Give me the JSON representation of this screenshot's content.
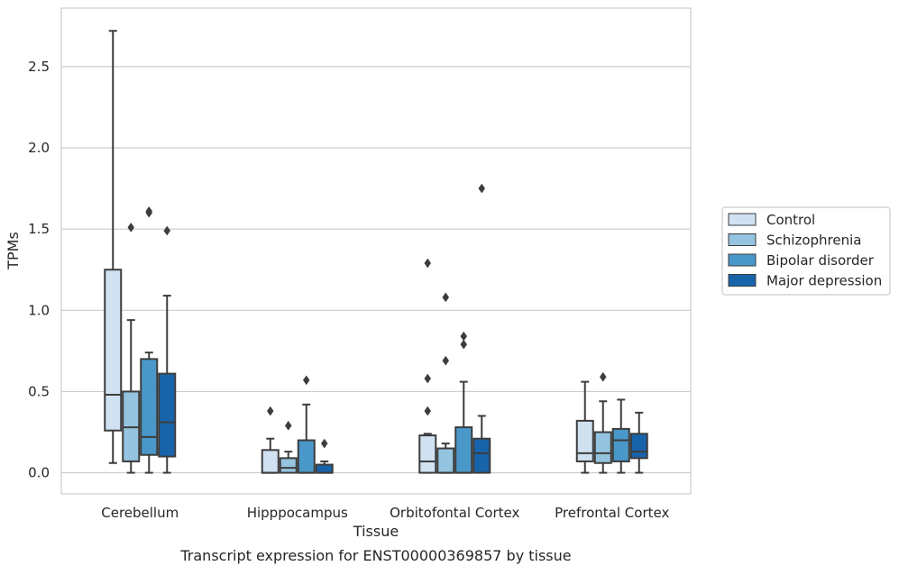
{
  "colors": {
    "background": "#ffffff",
    "grid": "#cccccc",
    "frame": "#cccccc",
    "box_edge": "#3d3d3d",
    "text": "#262626",
    "series": [
      "#d0e1f2",
      "#94c4df",
      "#4a98c9",
      "#1764ab"
    ]
  },
  "chart_data": {
    "type": "box",
    "caption": "Transcript expression for ENST00000369857 by tissue",
    "xlabel": "Tissue",
    "ylabel": "TPMs",
    "ylim": [
      -0.13,
      2.86
    ],
    "yticks": [
      0.0,
      0.5,
      1.0,
      1.5,
      2.0,
      2.5
    ],
    "ytick_labels": [
      "0.0",
      "0.5",
      "1.0",
      "1.5",
      "2.0",
      "2.5"
    ],
    "grid": "horizontal",
    "legend_position": "right, outside plot",
    "categories": [
      "Cerebellum",
      "Hipppocampus",
      "Orbitofontal Cortex",
      "Prefrontal Cortex"
    ],
    "series": [
      {
        "name": "Control",
        "boxes": [
          {
            "whislo": 0.06,
            "q1": 0.26,
            "med": 0.48,
            "q3": 1.25,
            "whishi": 2.72,
            "fliers": []
          },
          {
            "whislo": 0.0,
            "q1": 0.0,
            "med": 0.0,
            "q3": 0.14,
            "whishi": 0.21,
            "fliers": [
              0.38
            ]
          },
          {
            "whislo": 0.0,
            "q1": 0.0,
            "med": 0.07,
            "q3": 0.23,
            "whishi": 0.24,
            "fliers": [
              0.38,
              0.58,
              1.29
            ]
          },
          {
            "whislo": 0.0,
            "q1": 0.07,
            "med": 0.12,
            "q3": 0.32,
            "whishi": 0.56,
            "fliers": []
          }
        ]
      },
      {
        "name": "Schizophrenia",
        "boxes": [
          {
            "whislo": 0.0,
            "q1": 0.07,
            "med": 0.28,
            "q3": 0.5,
            "whishi": 0.94,
            "fliers": [
              1.51
            ]
          },
          {
            "whislo": 0.0,
            "q1": 0.0,
            "med": 0.03,
            "q3": 0.09,
            "whishi": 0.13,
            "fliers": [
              0.29
            ]
          },
          {
            "whislo": 0.0,
            "q1": 0.0,
            "med": 0.0,
            "q3": 0.15,
            "whishi": 0.18,
            "fliers": [
              0.69,
              1.08
            ]
          },
          {
            "whislo": 0.0,
            "q1": 0.06,
            "med": 0.12,
            "q3": 0.25,
            "whishi": 0.44,
            "fliers": [
              0.59
            ]
          }
        ]
      },
      {
        "name": "Bipolar disorder",
        "boxes": [
          {
            "whislo": 0.0,
            "q1": 0.11,
            "med": 0.22,
            "q3": 0.7,
            "whishi": 0.74,
            "fliers": [
              1.6,
              1.61
            ]
          },
          {
            "whislo": 0.0,
            "q1": 0.0,
            "med": 0.0,
            "q3": 0.2,
            "whishi": 0.42,
            "fliers": [
              0.57
            ]
          },
          {
            "whislo": 0.0,
            "q1": 0.0,
            "med": 0.0,
            "q3": 0.28,
            "whishi": 0.56,
            "fliers": [
              0.79,
              0.84
            ]
          },
          {
            "whislo": 0.0,
            "q1": 0.07,
            "med": 0.2,
            "q3": 0.27,
            "whishi": 0.45,
            "fliers": []
          }
        ]
      },
      {
        "name": "Major depression",
        "boxes": [
          {
            "whislo": 0.0,
            "q1": 0.1,
            "med": 0.31,
            "q3": 0.61,
            "whishi": 1.09,
            "fliers": [
              1.49
            ]
          },
          {
            "whislo": 0.0,
            "q1": 0.0,
            "med": 0.0,
            "q3": 0.05,
            "whishi": 0.07,
            "fliers": [
              0.18
            ]
          },
          {
            "whislo": 0.0,
            "q1": 0.0,
            "med": 0.12,
            "q3": 0.21,
            "whishi": 0.35,
            "fliers": [
              1.75
            ]
          },
          {
            "whislo": 0.0,
            "q1": 0.09,
            "med": 0.13,
            "q3": 0.24,
            "whishi": 0.37,
            "fliers": []
          }
        ]
      }
    ]
  }
}
